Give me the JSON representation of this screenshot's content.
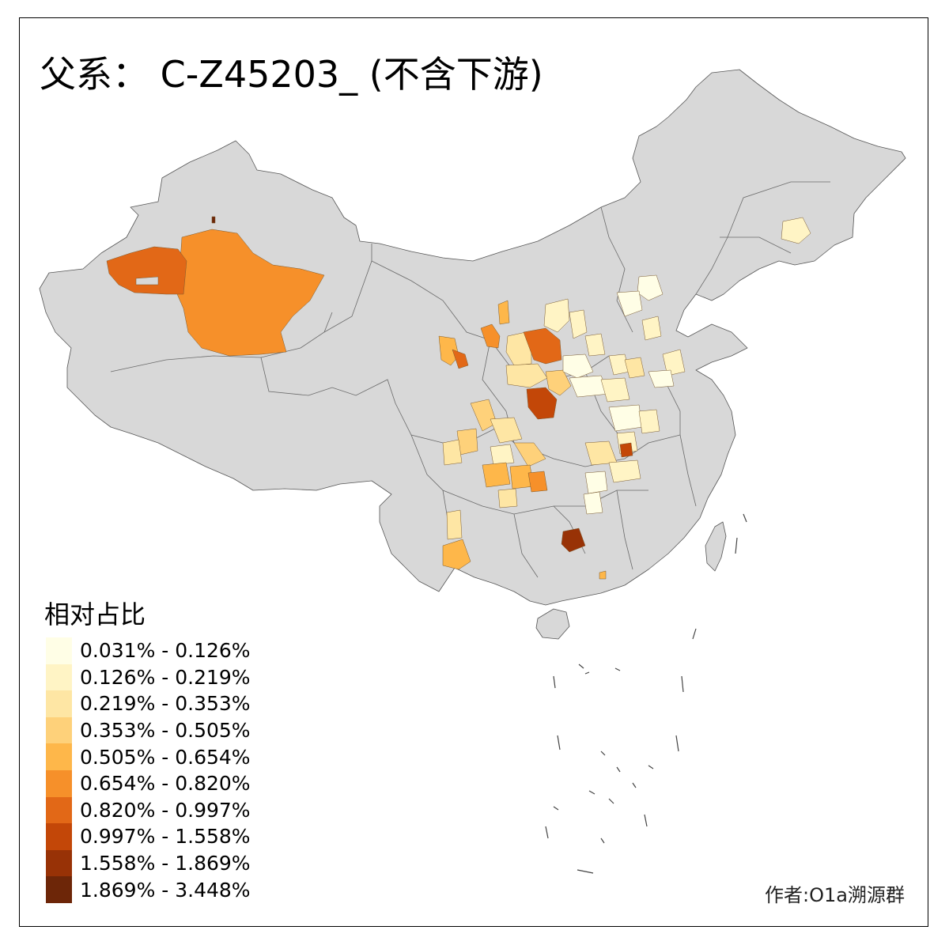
{
  "title": "父系： C-Z45203_ (不含下游)",
  "legend": {
    "title": "相对占比",
    "items": [
      {
        "label": "0.031% - 0.126%",
        "color": "#fffee6"
      },
      {
        "label": "0.126% - 0.219%",
        "color": "#fff4c5"
      },
      {
        "label": "0.219% - 0.353%",
        "color": "#fee6a4"
      },
      {
        "label": "0.353% - 0.505%",
        "color": "#fed17a"
      },
      {
        "label": "0.505% - 0.654%",
        "color": "#feb74a"
      },
      {
        "label": "0.654% - 0.820%",
        "color": "#f6902a"
      },
      {
        "label": "0.820% - 0.997%",
        "color": "#e26817"
      },
      {
        "label": "0.997% - 1.558%",
        "color": "#c34708"
      },
      {
        "label": "1.558% - 1.869%",
        "color": "#983206"
      },
      {
        "label": "1.869% - 3.448%",
        "color": "#6d2608"
      }
    ]
  },
  "credit": "作者:O1a溯源群",
  "colors": {
    "base_fill": "#d8d8d8",
    "border": "#555555"
  }
}
